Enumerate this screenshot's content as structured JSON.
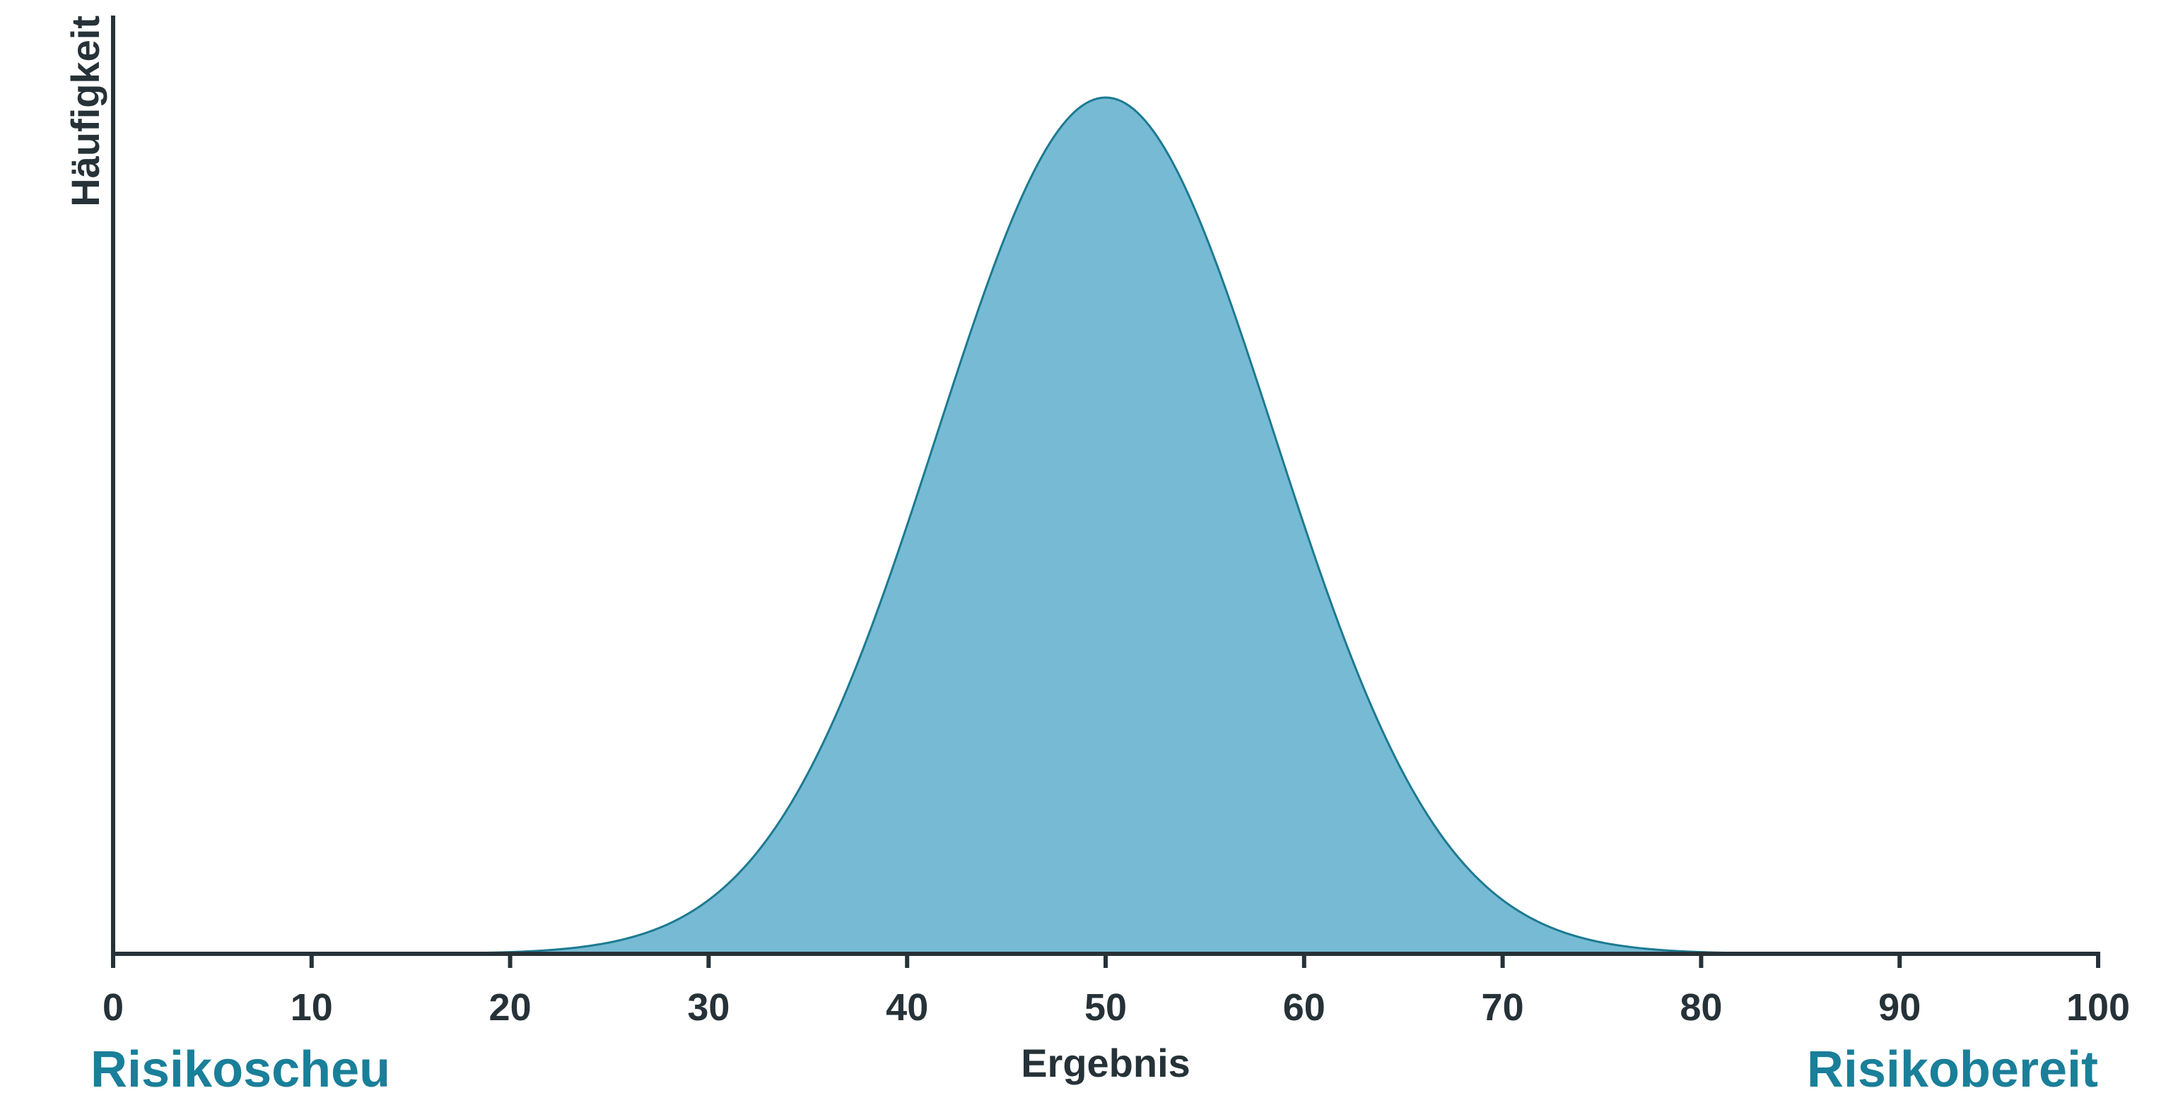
{
  "chart_data": {
    "type": "area",
    "title": "",
    "xlabel": "Ergebnis",
    "ylabel": "Häufigkeit",
    "xlim": [
      0,
      100
    ],
    "x_ticks": [
      "0",
      "10",
      "20",
      "30",
      "40",
      "50",
      "60",
      "70",
      "80",
      "90",
      "100"
    ],
    "y_ticks": [],
    "grid": false,
    "distribution": {
      "shape": "normal",
      "mean": 50,
      "std_dev": 8.5
    },
    "left_label": "Risikoscheu",
    "right_label": "Risikobereit"
  },
  "colors": {
    "fill": "#76BBD3",
    "stroke": "#1C7A92",
    "axis": "#263238",
    "accent_label": "#1A7F99"
  }
}
